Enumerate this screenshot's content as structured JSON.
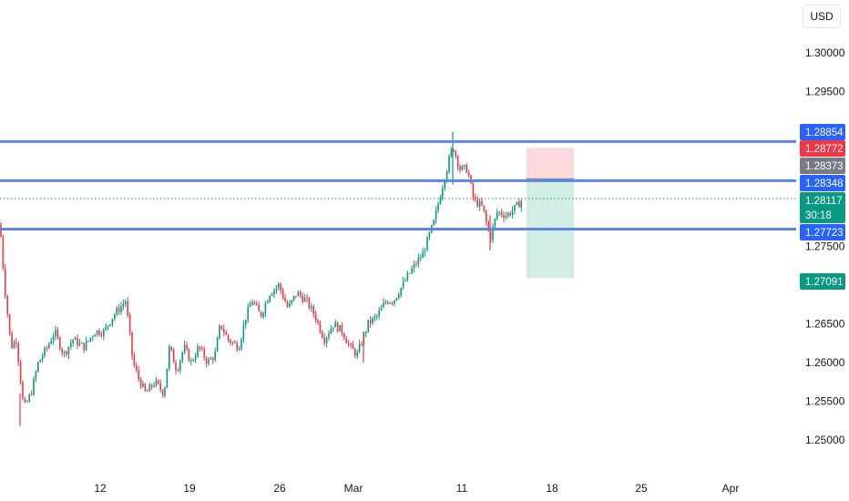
{
  "currency": "USD",
  "colors": {
    "up": "#089981",
    "down": "#f23645",
    "level_line": "#5b86e5",
    "level_tag": "#2962ff",
    "stop_zone": "#fcd9dc",
    "target_zone": "#d2ece6",
    "current_price_line": "#089981"
  },
  "chart_data": {
    "type": "candlestick",
    "instrument_currency": "USD",
    "x_ticks": [
      "12",
      "19",
      "26",
      "Mar",
      "11",
      "18",
      "25",
      "Apr"
    ],
    "y_ticks": [
      "1.30000",
      "1.29500",
      "1.27500",
      "1.26500",
      "1.26000",
      "1.25500",
      "1.25000"
    ],
    "ylim": [
      1.2485,
      1.3035
    ],
    "levels": [
      1.28854,
      1.28348,
      1.27723
    ],
    "price_tags": [
      {
        "label": "1.28854",
        "value": 1.28854,
        "color": "#2962ff"
      },
      {
        "label": "1.28772",
        "value": 1.28772,
        "color": "#f23645"
      },
      {
        "label": "1.28373",
        "value": 1.28373,
        "color": "#787b86"
      },
      {
        "label": "1.28348",
        "value": 1.28348,
        "color": "#2962ff"
      },
      {
        "label": "1.28117",
        "value": 1.28117,
        "color": "#089981",
        "sub": "30:18"
      },
      {
        "label": "1.27723",
        "value": 1.27723,
        "color": "#2962ff"
      },
      {
        "label": "1.27091",
        "value": 1.27091,
        "color": "#089981"
      }
    ],
    "position": {
      "side": "short",
      "stop": 1.28772,
      "entry": 1.28373,
      "target": 1.27091
    },
    "current_price": 1.28117,
    "countdown": "30:18",
    "close_path": [
      [
        1.2778,
        0
      ],
      [
        1.27,
        5
      ],
      [
        1.262,
        12
      ],
      [
        1.263,
        18
      ],
      [
        1.254,
        26
      ],
      [
        1.256,
        34
      ],
      [
        1.26,
        42
      ],
      [
        1.262,
        52
      ],
      [
        1.264,
        60
      ],
      [
        1.261,
        70
      ],
      [
        1.263,
        80
      ],
      [
        1.262,
        92
      ],
      [
        1.264,
        104
      ],
      [
        1.264,
        114
      ],
      [
        1.266,
        124
      ],
      [
        1.268,
        138
      ],
      [
        1.26,
        146
      ],
      [
        1.258,
        152
      ],
      [
        1.256,
        160
      ],
      [
        1.2575,
        170
      ],
      [
        1.256,
        180
      ],
      [
        1.262,
        186
      ],
      [
        1.259,
        194
      ],
      [
        1.262,
        202
      ],
      [
        1.26,
        210
      ],
      [
        1.262,
        218
      ],
      [
        1.26,
        228
      ],
      [
        1.261,
        236
      ],
      [
        1.265,
        242
      ],
      [
        1.263,
        250
      ],
      [
        1.262,
        262
      ],
      [
        1.266,
        270
      ],
      [
        1.268,
        277
      ],
      [
        1.266,
        286
      ],
      [
        1.269,
        296
      ],
      [
        1.27,
        306
      ],
      [
        1.267,
        316
      ],
      [
        1.269,
        326
      ],
      [
        1.268,
        336
      ],
      [
        1.266,
        346
      ],
      [
        1.263,
        356
      ],
      [
        1.265,
        366
      ],
      [
        1.264,
        376
      ],
      [
        1.262,
        384
      ],
      [
        1.261,
        392
      ],
      [
        1.265,
        404
      ],
      [
        1.266,
        414
      ],
      [
        1.268,
        424
      ],
      [
        1.268,
        432
      ],
      [
        1.27,
        442
      ],
      [
        1.272,
        452
      ],
      [
        1.274,
        464
      ],
      [
        1.278,
        476
      ],
      [
        1.283,
        486
      ],
      [
        1.288,
        497
      ],
      [
        1.285,
        505
      ],
      [
        1.285,
        513
      ],
      [
        1.281,
        520
      ],
      [
        1.28,
        530
      ],
      [
        1.276,
        538
      ],
      [
        1.2795,
        546
      ],
      [
        1.279,
        556
      ],
      [
        1.28,
        566
      ],
      [
        1.2812,
        574
      ]
    ]
  }
}
